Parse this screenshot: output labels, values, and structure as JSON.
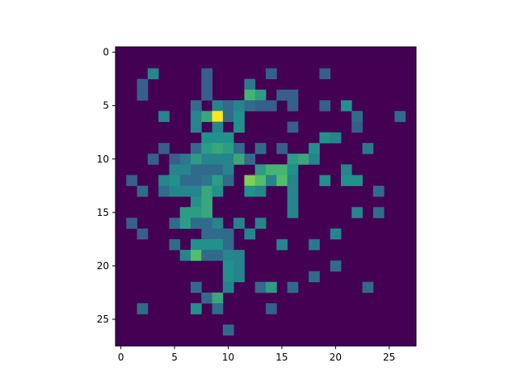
{
  "chart_data": {
    "type": "heatmap",
    "colormap": "viridis",
    "colormap_stops": [
      "#440154",
      "#3b528b",
      "#21918c",
      "#5ec962",
      "#fde725"
    ],
    "grid": false,
    "title": "",
    "xlabel": "",
    "ylabel": "",
    "n_rows": 28,
    "n_cols": 28,
    "xlim": [
      -0.5,
      27.5
    ],
    "ylim": [
      27.5,
      -0.5
    ],
    "value_range": [
      0,
      1
    ],
    "x_ticks": [
      0,
      5,
      10,
      15,
      20,
      25
    ],
    "y_ticks": [
      0,
      5,
      10,
      15,
      20,
      25
    ],
    "cells": [
      [
        2,
        3,
        0.45
      ],
      [
        2,
        8,
        0.3
      ],
      [
        2,
        14,
        0.3
      ],
      [
        2,
        19,
        0.3
      ],
      [
        3,
        2,
        0.3
      ],
      [
        3,
        8,
        0.3
      ],
      [
        3,
        12,
        0.4
      ],
      [
        4,
        2,
        0.3
      ],
      [
        4,
        8,
        0.3
      ],
      [
        4,
        12,
        0.65
      ],
      [
        4,
        13,
        0.55
      ],
      [
        4,
        15,
        0.3
      ],
      [
        4,
        16,
        0.3
      ],
      [
        5,
        7,
        0.35
      ],
      [
        5,
        9,
        0.45
      ],
      [
        5,
        10,
        0.35
      ],
      [
        5,
        11,
        0.45
      ],
      [
        5,
        12,
        0.35
      ],
      [
        5,
        13,
        0.3
      ],
      [
        5,
        14,
        0.3
      ],
      [
        5,
        16,
        0.3
      ],
      [
        5,
        19,
        0.3
      ],
      [
        5,
        21,
        0.5
      ],
      [
        6,
        4,
        0.45
      ],
      [
        6,
        7,
        0.45
      ],
      [
        6,
        8,
        0.6
      ],
      [
        6,
        9,
        1.0
      ],
      [
        6,
        10,
        0.35
      ],
      [
        6,
        11,
        0.5
      ],
      [
        6,
        22,
        0.35
      ],
      [
        6,
        26,
        0.35
      ],
      [
        7,
        7,
        0.45
      ],
      [
        7,
        9,
        0.45
      ],
      [
        7,
        11,
        0.5
      ],
      [
        7,
        16,
        0.3
      ],
      [
        7,
        22,
        0.3
      ],
      [
        8,
        8,
        0.5
      ],
      [
        8,
        9,
        0.5
      ],
      [
        8,
        10,
        0.5
      ],
      [
        8,
        19,
        0.5
      ],
      [
        8,
        20,
        0.45
      ],
      [
        9,
        4,
        0.3
      ],
      [
        9,
        7,
        0.35
      ],
      [
        9,
        8,
        0.55
      ],
      [
        9,
        9,
        0.6
      ],
      [
        9,
        10,
        0.55
      ],
      [
        9,
        11,
        0.35
      ],
      [
        9,
        13,
        0.35
      ],
      [
        9,
        15,
        0.3
      ],
      [
        9,
        18,
        0.5
      ],
      [
        9,
        23,
        0.4
      ],
      [
        10,
        3,
        0.3
      ],
      [
        10,
        5,
        0.3
      ],
      [
        10,
        6,
        0.4
      ],
      [
        10,
        7,
        0.55
      ],
      [
        10,
        8,
        0.45
      ],
      [
        10,
        9,
        0.45
      ],
      [
        10,
        10,
        0.45
      ],
      [
        10,
        11,
        0.6
      ],
      [
        10,
        12,
        0.35
      ],
      [
        10,
        16,
        0.55
      ],
      [
        10,
        17,
        0.6
      ],
      [
        10,
        18,
        0.45
      ],
      [
        11,
        5,
        0.45
      ],
      [
        11,
        6,
        0.45
      ],
      [
        11,
        7,
        0.35
      ],
      [
        11,
        8,
        0.35
      ],
      [
        11,
        9,
        0.35
      ],
      [
        11,
        10,
        0.45
      ],
      [
        11,
        13,
        0.55
      ],
      [
        11,
        14,
        0.65
      ],
      [
        11,
        15,
        0.65
      ],
      [
        11,
        16,
        0.5
      ],
      [
        11,
        21,
        0.45
      ],
      [
        12,
        1,
        0.3
      ],
      [
        12,
        4,
        0.45
      ],
      [
        12,
        5,
        0.5
      ],
      [
        12,
        6,
        0.35
      ],
      [
        12,
        7,
        0.35
      ],
      [
        12,
        8,
        0.4
      ],
      [
        12,
        9,
        0.55
      ],
      [
        12,
        10,
        0.35
      ],
      [
        12,
        12,
        0.8
      ],
      [
        12,
        13,
        0.7
      ],
      [
        12,
        14,
        0.45
      ],
      [
        12,
        15,
        0.7
      ],
      [
        12,
        16,
        0.45
      ],
      [
        12,
        19,
        0.5
      ],
      [
        12,
        21,
        0.5
      ],
      [
        12,
        22,
        0.5
      ],
      [
        13,
        2,
        0.35
      ],
      [
        13,
        4,
        0.35
      ],
      [
        13,
        5,
        0.45
      ],
      [
        13,
        6,
        0.45
      ],
      [
        13,
        7,
        0.45
      ],
      [
        13,
        8,
        0.6
      ],
      [
        13,
        9,
        0.5
      ],
      [
        13,
        12,
        0.5
      ],
      [
        13,
        13,
        0.45
      ],
      [
        13,
        16,
        0.45
      ],
      [
        13,
        24,
        0.35
      ],
      [
        14,
        7,
        0.5
      ],
      [
        14,
        8,
        0.6
      ],
      [
        14,
        16,
        0.45
      ],
      [
        15,
        6,
        0.55
      ],
      [
        15,
        7,
        0.55
      ],
      [
        15,
        8,
        0.6
      ],
      [
        15,
        16,
        0.45
      ],
      [
        15,
        22,
        0.45
      ],
      [
        15,
        24,
        0.35
      ],
      [
        16,
        1,
        0.3
      ],
      [
        16,
        5,
        0.35
      ],
      [
        16,
        6,
        0.55
      ],
      [
        16,
        7,
        0.35
      ],
      [
        16,
        8,
        0.35
      ],
      [
        16,
        9,
        0.45
      ],
      [
        16,
        11,
        0.45
      ],
      [
        16,
        13,
        0.45
      ],
      [
        17,
        2,
        0.3
      ],
      [
        17,
        8,
        0.35
      ],
      [
        17,
        9,
        0.35
      ],
      [
        17,
        10,
        0.35
      ],
      [
        17,
        12,
        0.45
      ],
      [
        17,
        20,
        0.45
      ],
      [
        18,
        5,
        0.35
      ],
      [
        18,
        7,
        0.5
      ],
      [
        18,
        8,
        0.5
      ],
      [
        18,
        9,
        0.5
      ],
      [
        18,
        10,
        0.35
      ],
      [
        18,
        15,
        0.45
      ],
      [
        18,
        18,
        0.4
      ],
      [
        19,
        6,
        0.45
      ],
      [
        19,
        7,
        0.7
      ],
      [
        19,
        8,
        0.35
      ],
      [
        19,
        9,
        0.35
      ],
      [
        19,
        10,
        0.45
      ],
      [
        19,
        11,
        0.45
      ],
      [
        20,
        10,
        0.5
      ],
      [
        20,
        11,
        0.45
      ],
      [
        20,
        20,
        0.35
      ],
      [
        21,
        10,
        0.5
      ],
      [
        21,
        11,
        0.45
      ],
      [
        21,
        18,
        0.35
      ],
      [
        22,
        7,
        0.35
      ],
      [
        22,
        10,
        0.45
      ],
      [
        22,
        13,
        0.35
      ],
      [
        22,
        14,
        0.55
      ],
      [
        22,
        16,
        0.35
      ],
      [
        22,
        23,
        0.35
      ],
      [
        23,
        8,
        0.35
      ],
      [
        23,
        9,
        0.6
      ],
      [
        24,
        2,
        0.35
      ],
      [
        24,
        7,
        0.5
      ],
      [
        24,
        9,
        0.35
      ],
      [
        24,
        14,
        0.3
      ],
      [
        26,
        10,
        0.35
      ]
    ]
  }
}
